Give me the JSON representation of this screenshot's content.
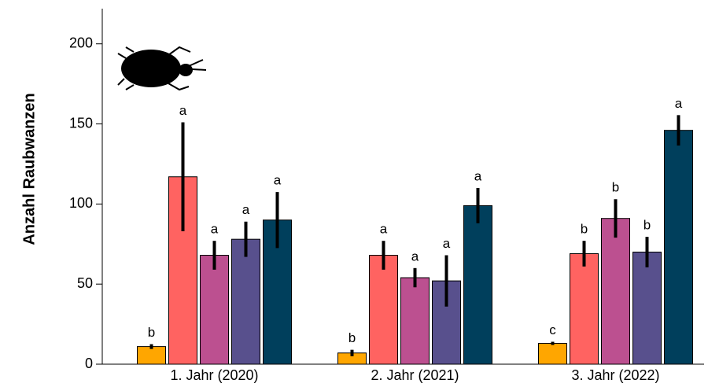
{
  "chart_data": {
    "type": "bar",
    "y_label": "Anzahl Raubwanzen",
    "categories": [
      "1. Jahr (2020)",
      "2. Jahr (2021)",
      "3. Jahr (2022)"
    ],
    "series": [
      {
        "color": "#ffa600",
        "values": [
          11,
          7,
          13
        ],
        "errors": [
          1.5,
          2,
          1
        ],
        "letters": [
          "b",
          "b",
          "c"
        ]
      },
      {
        "color": "#ff6361",
        "values": [
          117,
          68,
          69
        ],
        "errors": [
          34,
          9,
          8
        ],
        "letters": [
          "a",
          "a",
          "b"
        ]
      },
      {
        "color": "#bc5090",
        "values": [
          68,
          54,
          91
        ],
        "errors": [
          9,
          6,
          12
        ],
        "letters": [
          "a",
          "a",
          "b"
        ]
      },
      {
        "color": "#58508d",
        "values": [
          78,
          52,
          70
        ],
        "errors": [
          11,
          16,
          9.5
        ],
        "letters": [
          "a",
          "a",
          "b"
        ]
      },
      {
        "color": "#003f5c",
        "values": [
          90,
          99,
          146
        ],
        "errors": [
          17.5,
          11,
          9.5
        ],
        "letters": [
          "a",
          "a",
          "a"
        ]
      }
    ],
    "ylim": [
      0,
      220
    ],
    "yticks": [
      0,
      50,
      100,
      150,
      200
    ]
  }
}
